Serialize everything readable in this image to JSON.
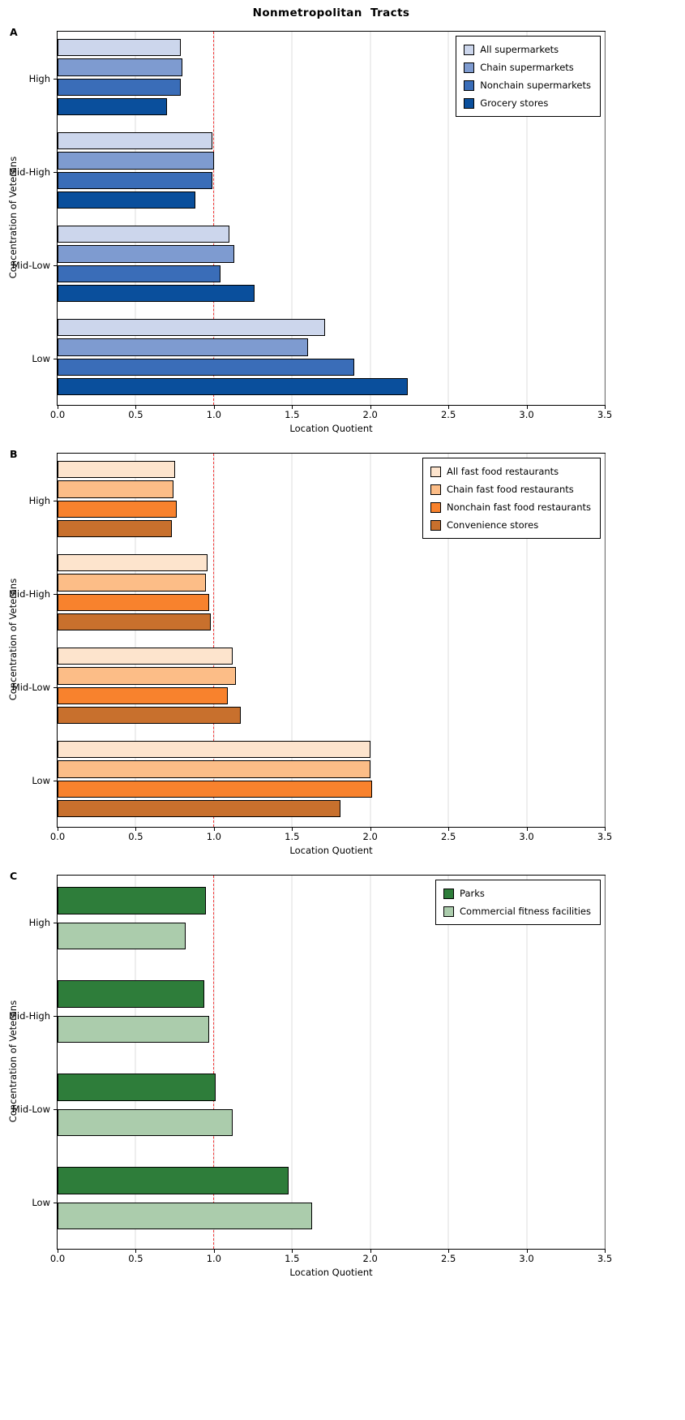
{
  "title": "Nonmetropolitan  Tracts",
  "figure": {
    "refline_color": "#f53b3b",
    "gridline_color": "#dcdcdc",
    "background": "#ffffff"
  },
  "chart_data": [
    {
      "type": "bar",
      "orientation": "horizontal",
      "panel": "A",
      "xlabel": "Location Quotient",
      "ylabel": "Concentration of Veterans",
      "xlim": [
        0,
        3.5
      ],
      "xticks": [
        "0.0",
        "0.5",
        "1.0",
        "1.5",
        "2.0",
        "2.5",
        "3.0",
        "3.5"
      ],
      "categories": [
        "High",
        "Mid-High",
        "Mid-Low",
        "Low"
      ],
      "legend_position": "upper-right",
      "grid": true,
      "refline_x": 1.0,
      "group_fill": 0.85,
      "series": [
        {
          "name": "All supermarkets",
          "color": "#ccd6ec",
          "values": [
            0.79,
            0.99,
            1.1,
            1.71
          ]
        },
        {
          "name": "Chain supermarkets",
          "color": "#7e9bd0",
          "values": [
            0.8,
            1.0,
            1.13,
            1.6
          ]
        },
        {
          "name": "Nonchain supermarkets",
          "color": "#3a6db8",
          "values": [
            0.79,
            0.99,
            1.04,
            1.9
          ]
        },
        {
          "name": "Grocery stores",
          "color": "#0a4f9c",
          "values": [
            0.7,
            0.88,
            1.26,
            2.24
          ]
        }
      ]
    },
    {
      "type": "bar",
      "orientation": "horizontal",
      "panel": "B",
      "xlabel": "Location Quotient",
      "ylabel": "Concentration of Veterans",
      "xlim": [
        0,
        3.5
      ],
      "xticks": [
        "0.0",
        "0.5",
        "1.0",
        "1.5",
        "2.0",
        "2.5",
        "3.0",
        "3.5"
      ],
      "categories": [
        "High",
        "Mid-High",
        "Mid-Low",
        "Low"
      ],
      "legend_position": "upper-right",
      "grid": true,
      "refline_x": 1.0,
      "group_fill": 0.85,
      "series": [
        {
          "name": "All fast food restaurants",
          "color": "#fde4cd",
          "values": [
            0.75,
            0.96,
            1.12,
            2.0
          ]
        },
        {
          "name": "Chain fast food restaurants",
          "color": "#fcbd87",
          "values": [
            0.74,
            0.95,
            1.14,
            2.0
          ]
        },
        {
          "name": "Nonchain fast food restaurants",
          "color": "#f8822d",
          "values": [
            0.76,
            0.97,
            1.09,
            2.01
          ]
        },
        {
          "name": "Convenience stores",
          "color": "#c8702d",
          "values": [
            0.73,
            0.98,
            1.17,
            1.81
          ]
        }
      ]
    },
    {
      "type": "bar",
      "orientation": "horizontal",
      "panel": "C",
      "xlabel": "Location Quotient",
      "ylabel": "Concentration of Veterans",
      "xlim": [
        0,
        3.5
      ],
      "xticks": [
        "0.0",
        "0.5",
        "1.0",
        "1.5",
        "2.0",
        "2.5",
        "3.0",
        "3.5"
      ],
      "categories": [
        "High",
        "Mid-High",
        "Mid-Low",
        "Low"
      ],
      "legend_position": "upper-right",
      "grid": true,
      "refline_x": 1.0,
      "group_fill": 0.75,
      "series": [
        {
          "name": "Parks",
          "color": "#2e7d3a",
          "values": [
            0.95,
            0.94,
            1.01,
            1.48
          ]
        },
        {
          "name": "Commercial fitness facilities",
          "color": "#abccac",
          "values": [
            0.82,
            0.97,
            1.12,
            1.63
          ]
        }
      ]
    }
  ]
}
